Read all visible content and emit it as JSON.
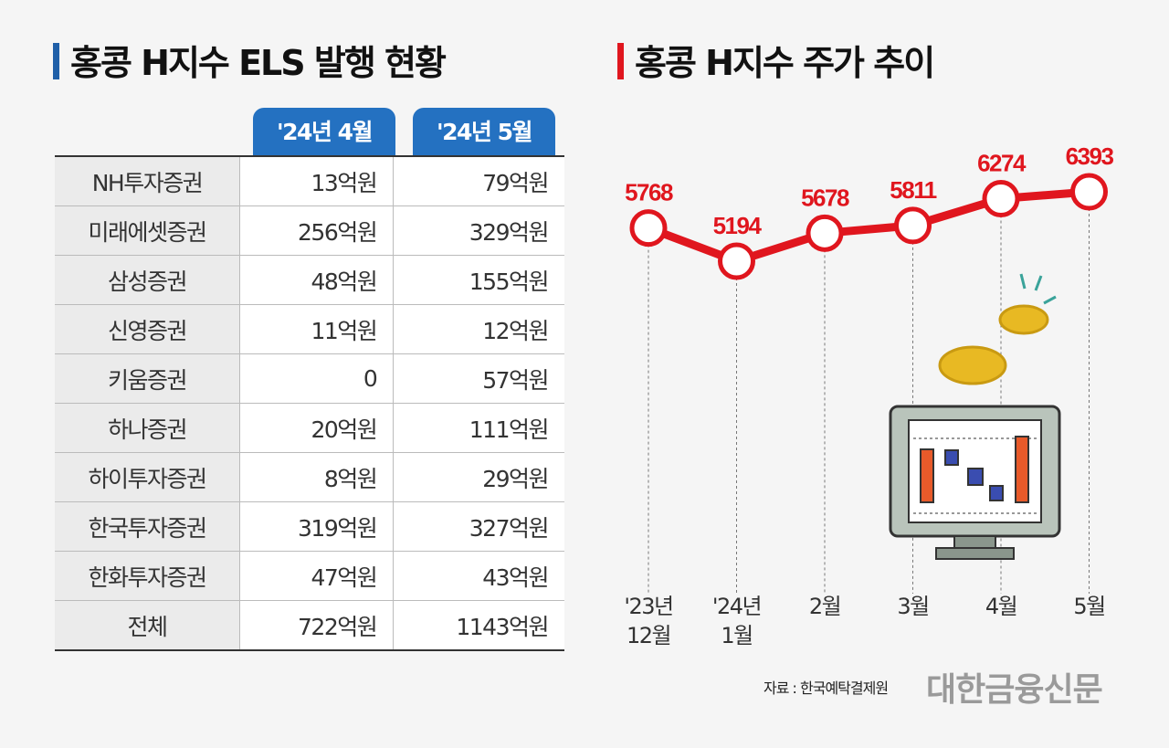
{
  "left": {
    "title": "홍콩 H지수 ELS 발행 현황",
    "columns": [
      "'24년 4월",
      "'24년 5월"
    ],
    "rows": [
      {
        "name": "NH투자증권",
        "apr": "13억원",
        "may": "79억원"
      },
      {
        "name": "미래에셋증권",
        "apr": "256억원",
        "may": "329억원"
      },
      {
        "name": "삼성증권",
        "apr": "48억원",
        "may": "155억원"
      },
      {
        "name": "신영증권",
        "apr": "11억원",
        "may": "12억원"
      },
      {
        "name": "키움증권",
        "apr": "0",
        "may": "57억원"
      },
      {
        "name": "하나증권",
        "apr": "20억원",
        "may": "111억원"
      },
      {
        "name": "하이투자증권",
        "apr": "8억원",
        "may": "29억원"
      },
      {
        "name": "한국투자증권",
        "apr": "319억원",
        "may": "327억원"
      },
      {
        "name": "한화투자증권",
        "apr": "47억원",
        "may": "43억원"
      },
      {
        "name": "전체",
        "apr": "722억원",
        "may": "1143억원"
      }
    ]
  },
  "chart_data": {
    "type": "line",
    "title": "홍콩 H지수 주가 추이",
    "categories": [
      [
        "'23년",
        "12월"
      ],
      [
        "'24년",
        "1월"
      ],
      [
        "2월"
      ],
      [
        "3월"
      ],
      [
        "4월"
      ],
      [
        "5월"
      ]
    ],
    "values": [
      5768,
      5194,
      5678,
      5811,
      6274,
      6393
    ],
    "data_labels": [
      "5768",
      "5194",
      "5678",
      "5811",
      "6274",
      "6393"
    ],
    "line_color": "#e0161e",
    "grid": false
  },
  "source": "자료 : 한국예탁결제원",
  "logo": "대한금융신문"
}
